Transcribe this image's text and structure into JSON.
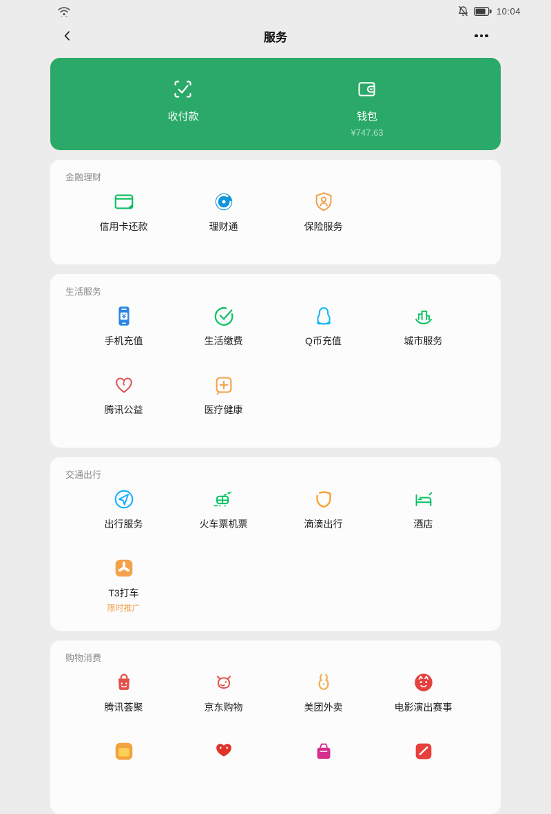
{
  "status_bar": {
    "time": "10:04",
    "wifi_icon": "wifi",
    "mute_icon": "bell-muted",
    "battery_icon": "battery"
  },
  "nav_bar": {
    "title": "服务",
    "back_icon": "chevron-left",
    "more_icon": "more-dots"
  },
  "wallet_card": {
    "bg_color": "#2aa968",
    "items": [
      {
        "icon": "scan-pay",
        "label": "收付款"
      },
      {
        "icon": "wallet",
        "label": "钱包",
        "value": "¥747.63"
      }
    ]
  },
  "sections": [
    {
      "title": "金融理财",
      "items": [
        {
          "icon": "credit-card",
          "color": "#09bb5f",
          "label": "信用卡还款"
        },
        {
          "icon": "licaitong",
          "color": "#1296db",
          "label": "理财通"
        },
        {
          "icon": "insurance",
          "color": "#f5a04a",
          "label": "保险服务"
        }
      ]
    },
    {
      "title": "生活服务",
      "items": [
        {
          "icon": "phone-recharge",
          "color": "#2b85e4",
          "label": "手机充值"
        },
        {
          "icon": "life-payment",
          "color": "#07c160",
          "label": "生活缴费"
        },
        {
          "icon": "qcoin",
          "color": "#12b7f5",
          "label": "Q币充值"
        },
        {
          "icon": "city-services",
          "color": "#07c160",
          "label": "城市服务"
        },
        {
          "icon": "charity-heart",
          "color": "#e05658",
          "label": "腾讯公益"
        },
        {
          "icon": "medical",
          "color": "#f5a04a",
          "label": "医疗健康"
        }
      ]
    },
    {
      "title": "交通出行",
      "items": [
        {
          "icon": "travel-compass",
          "color": "#10aeff",
          "label": "出行服务"
        },
        {
          "icon": "train-plane",
          "color": "#07c160",
          "label": "火车票机票"
        },
        {
          "icon": "didi-shield",
          "color": "#fca235",
          "label": "滴滴出行"
        },
        {
          "icon": "hotel-bed",
          "color": "#07c160",
          "label": "酒店"
        },
        {
          "icon": "t3-logo",
          "color": "#f5a04a",
          "label": "T3打车",
          "badge": "限时推广",
          "badge_color": "#f0a04a"
        }
      ]
    },
    {
      "title": "购物消费",
      "items": [
        {
          "icon": "tencent-bag",
          "color": "#e25149",
          "label": "腾讯荟聚"
        },
        {
          "icon": "jd-dog",
          "color": "#e25149",
          "label": "京东购物"
        },
        {
          "icon": "meituan-rabbit",
          "color": "#f0b050",
          "label": "美团外卖"
        },
        {
          "icon": "maoyan-cat",
          "color": "#e5413e",
          "label": "电影演出赛事"
        },
        {
          "icon": "orange-app",
          "color": "#f2a33c",
          "label": ""
        },
        {
          "icon": "pdd-hearts",
          "color": "#e0342b",
          "label": ""
        },
        {
          "icon": "vip-bag",
          "color": "#d6308d",
          "label": ""
        },
        {
          "icon": "red-app",
          "color": "#e8403c",
          "label": ""
        }
      ]
    }
  ]
}
